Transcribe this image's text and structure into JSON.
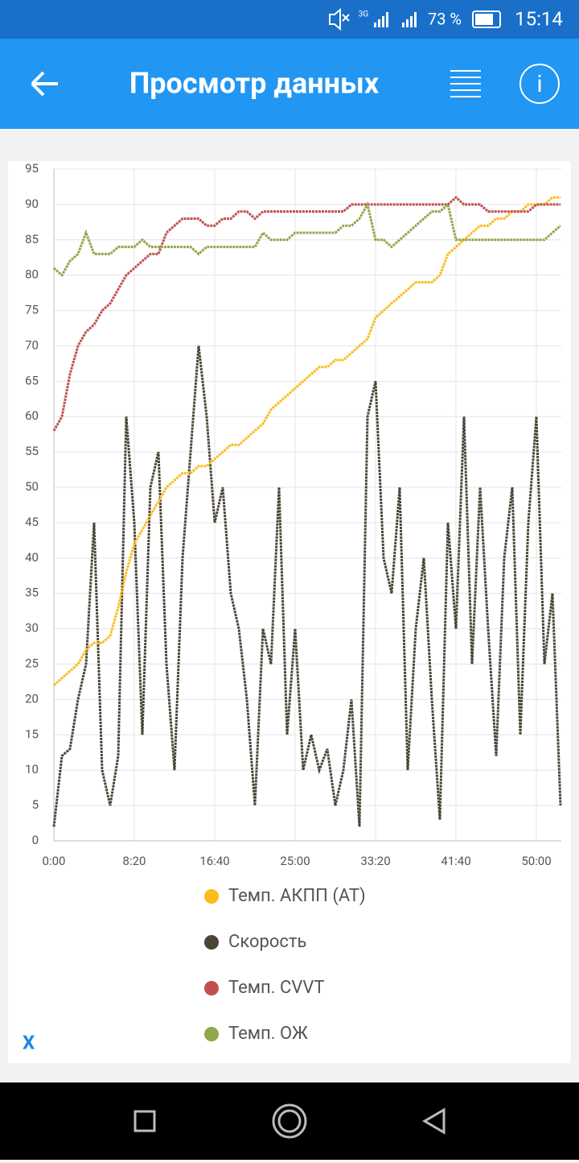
{
  "status_bar": {
    "network": "3G",
    "battery": "73 %",
    "time": "15:14"
  },
  "app_bar": {
    "title": "Просмотр данных"
  },
  "close_label": "X",
  "chart_data": {
    "type": "line",
    "x": [
      0,
      50,
      100,
      150,
      200,
      250,
      300,
      350,
      400,
      450,
      500,
      550,
      600,
      650,
      700,
      750,
      800,
      850,
      900,
      950,
      1000,
      1050,
      1100,
      1150,
      1200,
      1250,
      1300,
      1350,
      1400,
      1450,
      1500,
      1550,
      1600,
      1650,
      1700,
      1750,
      1800,
      1850,
      1900,
      1950,
      2000,
      2050,
      2100,
      2150,
      2200,
      2250,
      2300,
      2350,
      2400,
      2450,
      2500,
      2550,
      2600,
      2650,
      2700,
      2750,
      2800,
      2850,
      2900,
      2950,
      3000,
      3050,
      3100,
      3150
    ],
    "series": [
      {
        "name": "Темп. АКПП (AT)",
        "color": "#fbbc1c",
        "values": [
          22,
          23,
          24,
          25,
          27,
          28,
          28,
          29,
          33,
          38,
          42,
          44,
          46,
          48,
          50,
          51,
          52,
          52,
          53,
          53,
          54,
          55,
          56,
          56,
          57,
          58,
          59,
          61,
          62,
          63,
          64,
          65,
          66,
          67,
          67,
          68,
          68,
          69,
          70,
          71,
          74,
          75,
          76,
          77,
          78,
          79,
          79,
          79,
          80,
          83,
          84,
          85,
          86,
          87,
          87,
          88,
          88,
          89,
          89,
          90,
          90,
          90,
          91,
          91
        ]
      },
      {
        "name": "Скорость",
        "color": "#4a4536",
        "values": [
          2,
          12,
          13,
          20,
          25,
          45,
          10,
          5,
          12,
          60,
          45,
          15,
          50,
          55,
          25,
          10,
          40,
          55,
          70,
          60,
          45,
          50,
          35,
          30,
          20,
          5,
          30,
          25,
          50,
          15,
          30,
          10,
          15,
          10,
          13,
          5,
          10,
          20,
          2,
          60,
          65,
          40,
          35,
          50,
          10,
          30,
          40,
          20,
          3,
          45,
          30,
          60,
          25,
          50,
          30,
          12,
          40,
          50,
          15,
          45,
          60,
          25,
          35,
          5
        ]
      },
      {
        "name": "Темп. CVVT",
        "color": "#c0504d",
        "values": [
          58,
          60,
          66,
          70,
          72,
          73,
          75,
          76,
          78,
          80,
          81,
          82,
          83,
          83,
          86,
          87,
          88,
          88,
          88,
          87,
          87,
          88,
          88,
          89,
          89,
          88,
          89,
          89,
          89,
          89,
          89,
          89,
          89,
          89,
          89,
          89,
          89,
          90,
          90,
          90,
          90,
          90,
          90,
          90,
          90,
          90,
          90,
          90,
          90,
          90,
          91,
          90,
          90,
          90,
          89,
          89,
          89,
          89,
          89,
          89,
          90,
          90,
          90,
          90
        ]
      },
      {
        "name": "Темп. ОЖ",
        "color": "#8fa84b",
        "values": [
          81,
          80,
          82,
          83,
          86,
          83,
          83,
          83,
          84,
          84,
          84,
          85,
          84,
          84,
          84,
          84,
          84,
          84,
          83,
          84,
          84,
          84,
          84,
          84,
          84,
          84,
          86,
          85,
          85,
          85,
          86,
          86,
          86,
          86,
          86,
          86,
          87,
          87,
          88,
          90,
          85,
          85,
          84,
          85,
          86,
          87,
          88,
          89,
          89,
          90,
          85,
          85,
          85,
          85,
          85,
          85,
          85,
          85,
          85,
          85,
          85,
          85,
          86,
          87
        ]
      }
    ],
    "xlim": [
      0,
      3155
    ],
    "xticks": [
      {
        "value": 0,
        "label": "0:00"
      },
      {
        "value": 500,
        "label": "8:20"
      },
      {
        "value": 1000,
        "label": "16:40"
      },
      {
        "value": 1500,
        "label": "25:00"
      },
      {
        "value": 2000,
        "label": "33:20"
      },
      {
        "value": 2500,
        "label": "41:40"
      },
      {
        "value": 3000,
        "label": "50:00"
      }
    ],
    "ylim": [
      0,
      95
    ],
    "yticks": [
      0,
      5,
      10,
      15,
      20,
      25,
      30,
      35,
      40,
      45,
      50,
      55,
      60,
      65,
      70,
      75,
      80,
      85,
      90,
      95
    ],
    "grid": true
  }
}
